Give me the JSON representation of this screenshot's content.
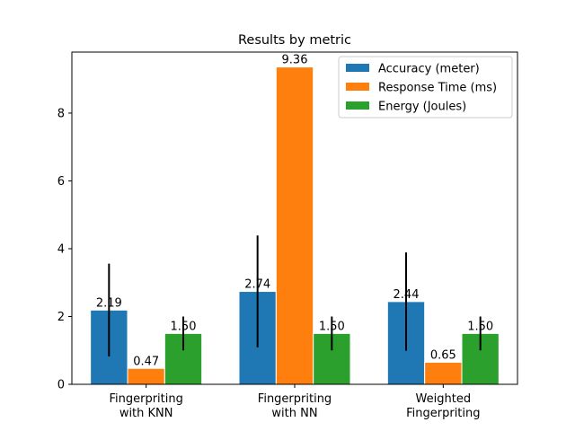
{
  "chart_data": {
    "type": "bar",
    "title": "Results by metric",
    "xlabel": "",
    "ylabel": "",
    "ylim": [
      0,
      9.8
    ],
    "yticks": [
      0,
      2,
      4,
      6,
      8
    ],
    "grid": false,
    "legend_position": "top-right",
    "categories": [
      [
        "Fingerpriting",
        "with KNN"
      ],
      [
        "Fingerpriting",
        "with NN"
      ],
      [
        "Weighted",
        "Fingerpriting"
      ]
    ],
    "series": [
      {
        "name": "Accuracy (meter)",
        "color": "#1f77b4",
        "values": [
          2.19,
          2.74,
          2.44
        ],
        "labels": [
          "2.19",
          "2.74",
          "2.44"
        ],
        "errors": [
          1.37,
          1.65,
          1.45
        ]
      },
      {
        "name": "Response Time (ms)",
        "color": "#ff7f0e",
        "values": [
          0.47,
          9.36,
          0.65
        ],
        "labels": [
          "0.47",
          "9.36",
          "0.65"
        ],
        "errors": [
          0,
          0,
          0
        ]
      },
      {
        "name": "Energy (Joules)",
        "color": "#2ca02c",
        "values": [
          1.5,
          1.5,
          1.5
        ],
        "labels": [
          "1.50",
          "1.50",
          "1.50"
        ],
        "errors": [
          0.5,
          0.5,
          0.5
        ]
      }
    ]
  }
}
